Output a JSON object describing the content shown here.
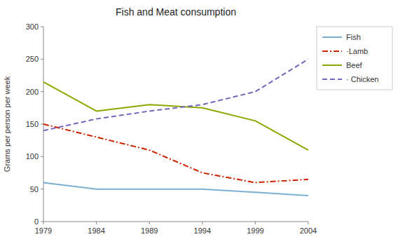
{
  "chart_data": {
    "type": "line",
    "title": "Fish and Meat consumption",
    "ylabel": "Grams per person per week",
    "x": [
      1979,
      1984,
      1989,
      1994,
      1999,
      2004
    ],
    "xlim": [
      1979,
      2004
    ],
    "xticks": [
      1979,
      1984,
      1989,
      1994,
      1999,
      2004
    ],
    "ylim": [
      0,
      300
    ],
    "yticks": [
      0,
      50,
      100,
      150,
      200,
      250,
      300
    ],
    "grid": false,
    "legend": "right",
    "series": [
      {
        "name": "Fish",
        "color": "#7bafd4",
        "line_style": "solid",
        "values": [
          60,
          50,
          50,
          50,
          45,
          40
        ]
      },
      {
        "name": "·Lamb",
        "color": "#cc2200",
        "line_style": "dashdot",
        "values": [
          150,
          130,
          110,
          75,
          60,
          65
        ]
      },
      {
        "name": "Beef",
        "color": "#88aa00",
        "line_style": "solid",
        "values": [
          215,
          170,
          180,
          175,
          155,
          110
        ]
      },
      {
        "name": "· Chicken",
        "color": "#7766bb",
        "line_style": "dashed",
        "values": [
          140,
          158,
          170,
          180,
          200,
          250
        ]
      }
    ]
  }
}
